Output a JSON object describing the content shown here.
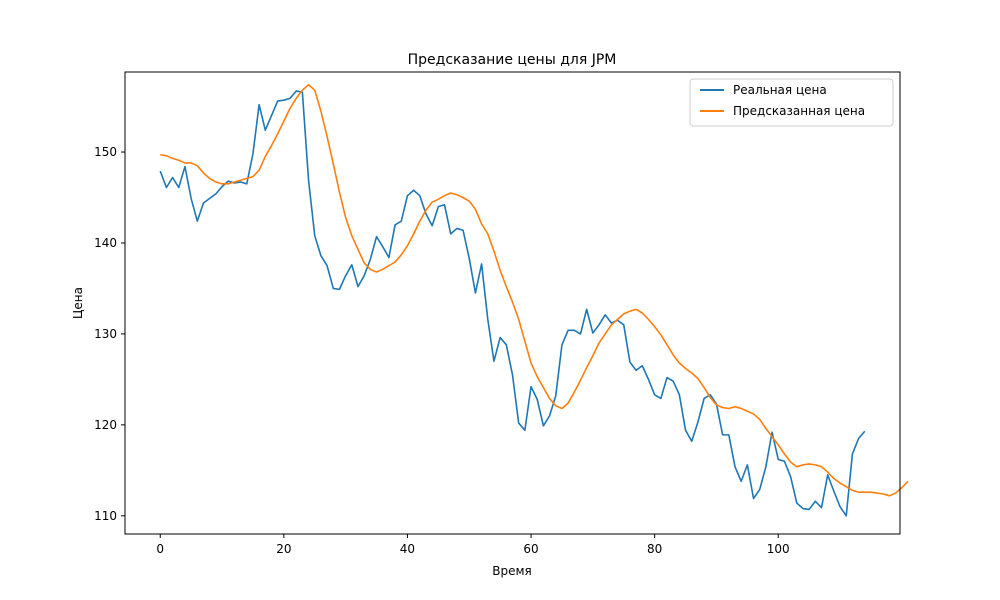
{
  "chart_data": {
    "type": "line",
    "title": "Предсказание цены для JPM",
    "xlabel": "Время",
    "ylabel": "Цена",
    "xlim": [
      -5.7,
      119.7
    ],
    "ylim": [
      108,
      158.8
    ],
    "xticks": [
      0,
      20,
      40,
      60,
      80,
      100
    ],
    "yticks": [
      110,
      120,
      130,
      140,
      150
    ],
    "grid": false,
    "legend_position": "top-right",
    "series": [
      {
        "name": "Реальная цена",
        "color": "#1f77b4",
        "values": [
          147.9,
          146.1,
          147.2,
          146.1,
          148.4,
          144.9,
          142.4,
          144.4,
          144.9,
          145.4,
          146.2,
          146.8,
          146.6,
          146.7,
          146.5,
          149.8,
          155.2,
          152.4,
          154.0,
          155.6,
          155.7,
          155.9,
          156.7,
          156.6,
          146.9,
          140.8,
          138.6,
          137.5,
          135.0,
          134.9,
          136.4,
          137.6,
          135.2,
          136.4,
          138.2,
          140.7,
          139.6,
          138.4,
          142.0,
          142.4,
          145.2,
          145.8,
          145.2,
          143.2,
          141.9,
          144.0,
          144.2,
          141.0,
          141.6,
          141.4,
          138.3,
          134.5,
          137.7,
          131.6,
          127.0,
          129.6,
          128.8,
          125.5,
          120.2,
          119.4,
          124.2,
          122.8,
          119.9,
          121.0,
          123.2,
          128.8,
          130.4,
          130.4,
          130.0,
          132.7,
          130.1,
          131.0,
          132.1,
          131.2,
          131.5,
          131.0,
          126.9,
          126.0,
          126.5,
          125.0,
          123.3,
          122.9,
          125.2,
          124.8,
          123.3,
          119.4,
          118.2,
          120.3,
          122.9,
          123.3,
          122.3,
          118.9,
          118.9,
          115.4,
          113.8,
          115.6,
          111.9,
          112.9,
          115.4,
          119.2,
          116.2,
          116.0,
          114.3,
          111.4,
          110.8,
          110.7,
          111.6,
          110.9,
          114.5,
          112.7,
          111.0,
          110.0,
          116.8,
          118.5,
          119.3
        ]
      },
      {
        "name": "Предсказанная цена",
        "color": "#ff7f0e",
        "values": [
          149.7,
          149.6,
          149.3,
          149.1,
          148.8,
          148.8,
          148.5,
          147.7,
          147.1,
          146.7,
          146.5,
          146.5,
          146.7,
          146.9,
          147.1,
          147.3,
          148.0,
          149.5,
          150.7,
          152.0,
          153.4,
          154.8,
          155.9,
          156.8,
          157.4,
          156.8,
          154.5,
          151.7,
          148.7,
          145.6,
          142.8,
          140.8,
          139.3,
          137.8,
          137.1,
          136.8,
          137.1,
          137.5,
          137.9,
          138.7,
          139.7,
          141.0,
          142.4,
          143.6,
          144.5,
          144.8,
          145.2,
          145.5,
          145.3,
          145.0,
          144.6,
          143.7,
          142.1,
          141.0,
          139.1,
          137.0,
          135.2,
          133.5,
          131.6,
          129.2,
          126.8,
          125.3,
          124.1,
          122.9,
          122.1,
          121.8,
          122.4,
          123.6,
          124.9,
          126.3,
          127.6,
          129.0,
          130.0,
          131.0,
          131.6,
          132.2,
          132.5,
          132.7,
          132.3,
          131.6,
          130.8,
          129.9,
          128.8,
          127.7,
          126.8,
          126.2,
          125.7,
          125.1,
          124.1,
          123.0,
          122.2,
          121.9,
          121.8,
          122.0,
          121.8,
          121.5,
          121.2,
          120.6,
          119.6,
          118.7,
          117.8,
          116.8,
          115.9,
          115.4,
          115.6,
          115.7,
          115.6,
          115.4,
          114.8,
          114.1,
          113.6,
          113.2,
          112.8,
          112.6,
          112.6,
          112.6,
          112.5,
          112.4,
          112.2,
          112.5,
          113.1,
          113.8
        ]
      }
    ]
  }
}
